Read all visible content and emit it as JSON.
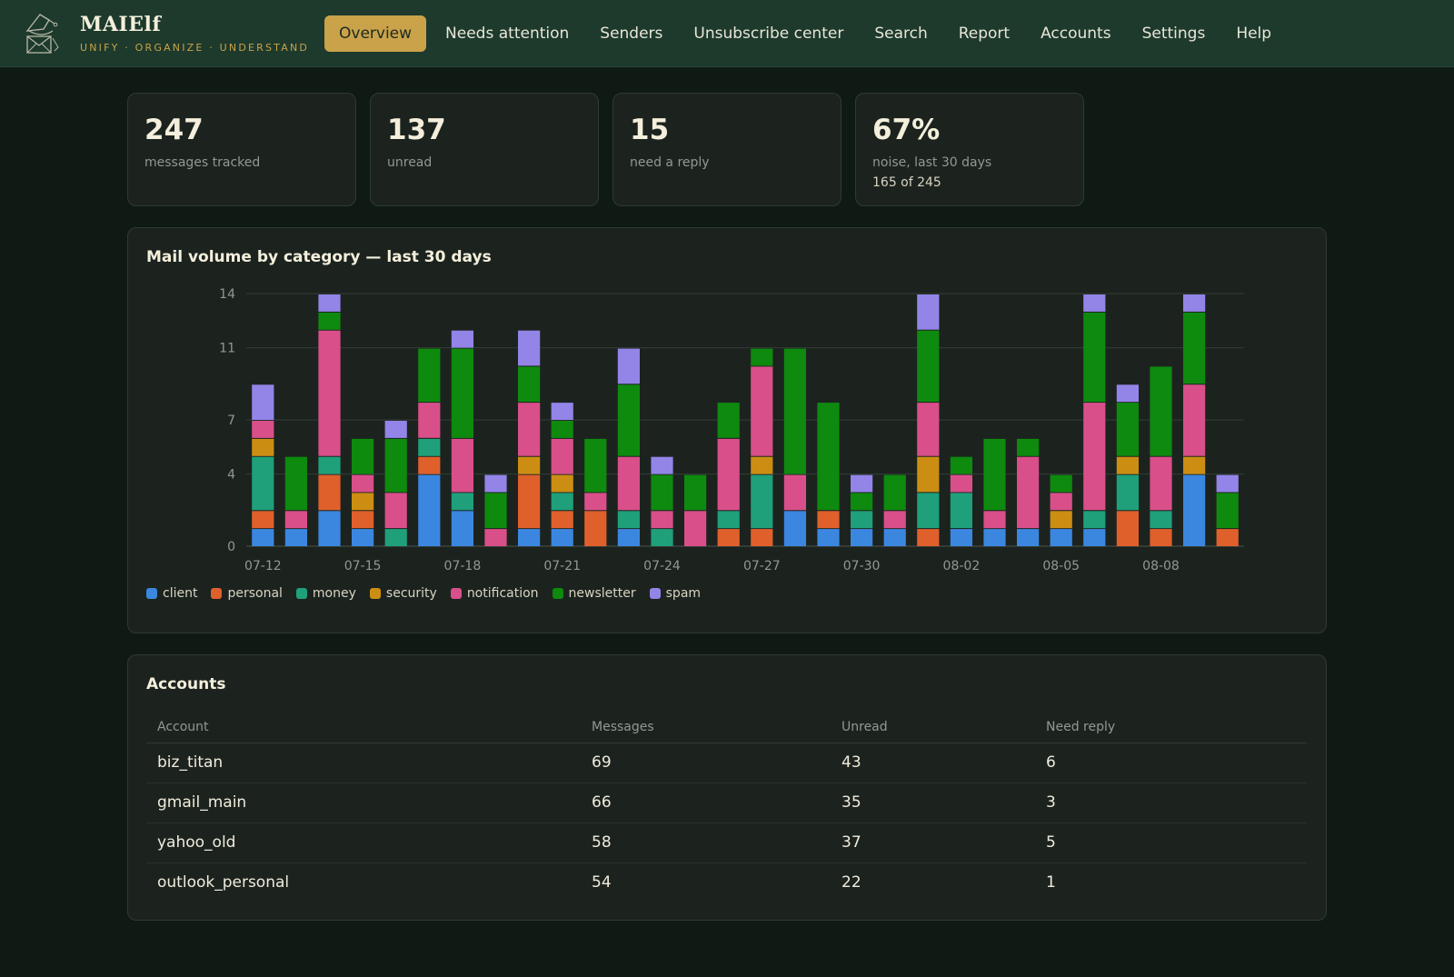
{
  "app": {
    "name": "MAIElf",
    "tagline": "UNIFY · ORGANIZE · UNDERSTAND",
    "logo_icon": "elf-envelope-icon"
  },
  "nav": [
    {
      "label": "Overview",
      "active": true
    },
    {
      "label": "Needs attention"
    },
    {
      "label": "Senders"
    },
    {
      "label": "Unsubscribe center"
    },
    {
      "label": "Search"
    },
    {
      "label": "Report"
    },
    {
      "label": "Accounts"
    },
    {
      "label": "Settings"
    },
    {
      "label": "Help"
    }
  ],
  "stats": [
    {
      "value": "247",
      "label": "messages tracked"
    },
    {
      "value": "137",
      "label": "unread"
    },
    {
      "value": "15",
      "label": "need a reply"
    },
    {
      "value": "67%",
      "label": "noise, last 30 days",
      "sub": "165 of 245"
    }
  ],
  "chart_panel": {
    "title": "Mail volume by category — last 30 days"
  },
  "colors": {
    "accent": "#c9a24a",
    "topbar": "#1d3a2c",
    "background": "#101a15",
    "card": "#1c231f"
  },
  "chart_data": {
    "type": "bar",
    "stacked": true,
    "title": "Mail volume by category — last 30 days",
    "xlabel": "",
    "ylabel": "",
    "ylim": [
      0,
      14
    ],
    "yticks": [
      0,
      4,
      7,
      11,
      14
    ],
    "grid": true,
    "legend_position": "bottom-left",
    "categories": [
      "07-12",
      "07-13",
      "07-14",
      "07-15",
      "07-16",
      "07-17",
      "07-18",
      "07-19",
      "07-20",
      "07-21",
      "07-22",
      "07-23",
      "07-24",
      "07-25",
      "07-26",
      "07-27",
      "07-28",
      "07-29",
      "07-30",
      "07-31",
      "08-01",
      "08-02",
      "08-03",
      "08-04",
      "08-05",
      "08-06",
      "08-07",
      "08-08",
      "08-09",
      "08-10"
    ],
    "x_tick_labels": [
      "07-12",
      "07-15",
      "07-18",
      "07-21",
      "07-24",
      "07-27",
      "07-30",
      "08-02",
      "08-05",
      "08-08"
    ],
    "series": [
      {
        "name": "client",
        "color": "#3b87e0",
        "values": [
          1,
          1,
          2,
          1,
          0,
          4,
          2,
          0,
          1,
          1,
          0,
          1,
          0,
          0,
          0,
          0,
          2,
          1,
          1,
          1,
          0,
          1,
          1,
          1,
          1,
          1,
          0,
          0,
          4,
          0
        ]
      },
      {
        "name": "personal",
        "color": "#e0602c",
        "values": [
          1,
          0,
          2,
          1,
          0,
          1,
          0,
          0,
          3,
          1,
          2,
          0,
          0,
          0,
          1,
          1,
          0,
          1,
          0,
          0,
          1,
          0,
          0,
          0,
          0,
          0,
          2,
          1,
          0,
          1
        ]
      },
      {
        "name": "money",
        "color": "#1fa07a",
        "values": [
          3,
          0,
          1,
          0,
          1,
          1,
          1,
          0,
          0,
          1,
          0,
          1,
          1,
          0,
          1,
          3,
          0,
          0,
          1,
          0,
          2,
          2,
          0,
          0,
          0,
          1,
          2,
          1,
          0,
          0
        ]
      },
      {
        "name": "security",
        "color": "#cc8e12",
        "values": [
          1,
          0,
          0,
          1,
          0,
          0,
          0,
          0,
          1,
          1,
          0,
          0,
          0,
          0,
          0,
          1,
          0,
          0,
          0,
          0,
          2,
          0,
          0,
          0,
          1,
          0,
          1,
          0,
          1,
          0
        ]
      },
      {
        "name": "notification",
        "color": "#d94f8a",
        "values": [
          1,
          1,
          7,
          1,
          2,
          2,
          3,
          1,
          3,
          2,
          1,
          3,
          1,
          2,
          4,
          5,
          2,
          0,
          0,
          1,
          3,
          1,
          1,
          4,
          1,
          6,
          0,
          3,
          4,
          0
        ]
      },
      {
        "name": "newsletter",
        "color": "#0e8a0e",
        "values": [
          0,
          3,
          1,
          2,
          3,
          3,
          5,
          2,
          2,
          1,
          3,
          4,
          2,
          2,
          2,
          1,
          7,
          6,
          1,
          2,
          4,
          1,
          4,
          1,
          1,
          5,
          3,
          5,
          4,
          2
        ]
      },
      {
        "name": "spam",
        "color": "#9384e8",
        "values": [
          2,
          0,
          1,
          0,
          1,
          0,
          1,
          1,
          2,
          1,
          0,
          2,
          1,
          0,
          0,
          0,
          0,
          0,
          1,
          0,
          2,
          0,
          0,
          0,
          0,
          1,
          1,
          0,
          1,
          1
        ]
      }
    ]
  },
  "accounts": {
    "title": "Accounts",
    "columns": [
      "Account",
      "Messages",
      "Unread",
      "Need reply"
    ],
    "rows": [
      [
        "biz_titan",
        "69",
        "43",
        "6"
      ],
      [
        "gmail_main",
        "66",
        "35",
        "3"
      ],
      [
        "yahoo_old",
        "58",
        "37",
        "5"
      ],
      [
        "outlook_personal",
        "54",
        "22",
        "1"
      ]
    ]
  }
}
